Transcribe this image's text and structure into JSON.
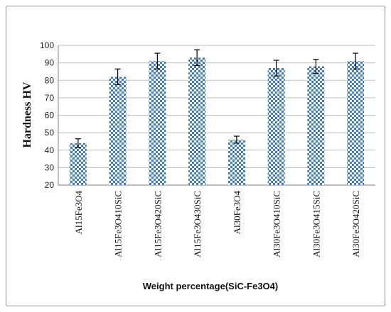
{
  "chart_data": {
    "type": "bar",
    "title": "",
    "xlabel": "Weight percentage(SiC-Fe3O4)",
    "ylabel": "Hardness HV",
    "ylim": [
      20,
      100
    ],
    "yticks": [
      20,
      30,
      40,
      50,
      60,
      70,
      80,
      90,
      100
    ],
    "grid": true,
    "legend": "none",
    "bar_pattern": "blue-white checkerboard",
    "colors": {
      "bar": "#3e7cc4",
      "bar_light": "#ffffff",
      "grid": "#bfbfbf",
      "error_bar": "#000000"
    },
    "categories": [
      "Al15Fe3O4",
      "Al15Fe3O410SiC",
      "Al15Fe3O420SiC",
      "Al15Fe3O430SiC",
      "Al30Fe3O4",
      "Al30Fe3O410SiC",
      "Al30Fe3O415SiC",
      "Al30Fe3O420SiC"
    ],
    "values": [
      44,
      82,
      91,
      93,
      46,
      87,
      88,
      91
    ],
    "errors": [
      2.5,
      4.5,
      4.5,
      4.5,
      2,
      4.5,
      4,
      4.5
    ]
  }
}
